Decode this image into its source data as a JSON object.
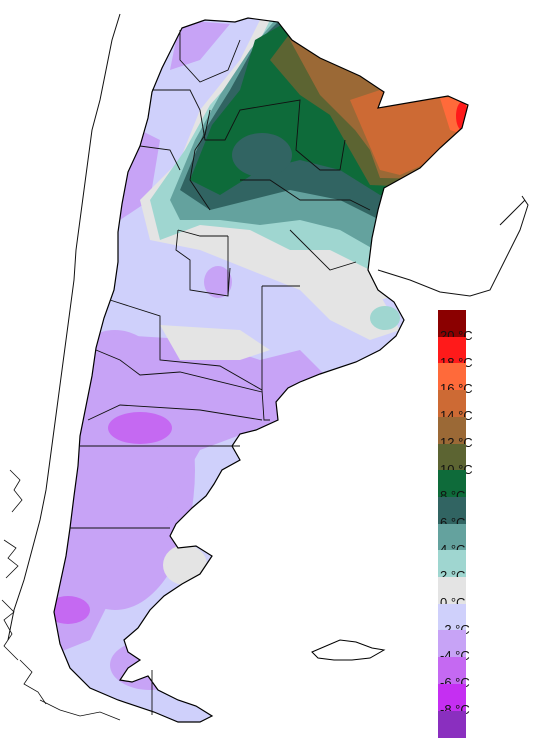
{
  "legend": {
    "title": "",
    "items": [
      {
        "label": "20 °C",
        "color": "#8b0000"
      },
      {
        "label": "18 °C",
        "color": "#ff1a1a"
      },
      {
        "label": "16 °C",
        "color": "#ff6a3a"
      },
      {
        "label": "14 °C",
        "color": "#cd6a34"
      },
      {
        "label": "12 °C",
        "color": "#9b6936"
      },
      {
        "label": "10 °C",
        "color": "#5c6432"
      },
      {
        "label": "8 °C",
        "color": "#0e6b3a"
      },
      {
        "label": "6 °C",
        "color": "#316462"
      },
      {
        "label": "4 °C",
        "color": "#64a29e"
      },
      {
        "label": "2 °C",
        "color": "#9fd6d0"
      },
      {
        "label": "0 °C",
        "color": "#e4e4e4"
      },
      {
        "label": "-2 °C",
        "color": "#cfd0fb"
      },
      {
        "label": "-4 °C",
        "color": "#c7a3f6"
      },
      {
        "label": "-6 °C",
        "color": "#c569f2"
      },
      {
        "label": "-8 °C",
        "color": "#c52ff2"
      },
      {
        "label": "",
        "color": "#8a2fbf"
      }
    ]
  }
}
